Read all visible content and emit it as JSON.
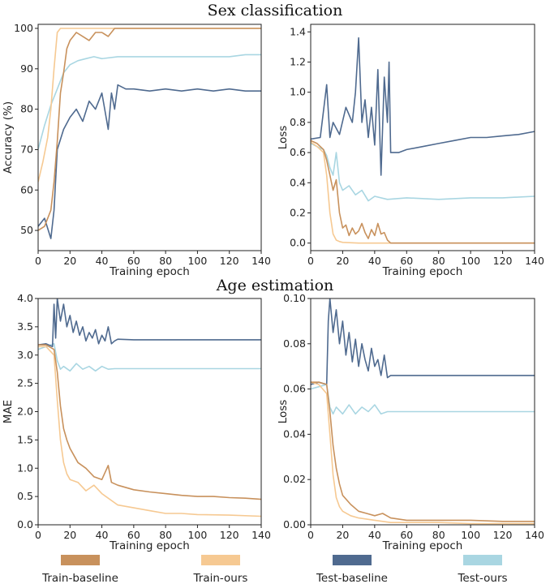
{
  "section_titles": {
    "top": "Sex classification",
    "bottom": "Age estimation"
  },
  "colors": {
    "train_baseline": "#c8915c",
    "train_ours": "#f6c992",
    "test_baseline": "#4f6a8f",
    "test_ours": "#a9d6e2"
  },
  "legend": [
    {
      "key": "train_baseline",
      "label": "Train-baseline"
    },
    {
      "key": "train_ours",
      "label": "Train-ours"
    },
    {
      "key": "test_baseline",
      "label": "Test-baseline"
    },
    {
      "key": "test_ours",
      "label": "Test-ours"
    }
  ],
  "chart_data": [
    {
      "id": "sex-acc",
      "type": "line",
      "xlabel": "Training epoch",
      "ylabel": "Accuracy (%)",
      "xlim": [
        0,
        140
      ],
      "ylim": [
        45,
        101
      ],
      "xticks": [
        0,
        20,
        40,
        60,
        80,
        100,
        120,
        140
      ],
      "yticks": [
        50,
        60,
        70,
        80,
        90,
        100
      ],
      "ytick_labels": [
        "50",
        "60",
        "70",
        "80",
        "90",
        "100"
      ],
      "series": [
        {
          "key": "test_ours",
          "name": "Test-ours",
          "x": [
            0,
            4,
            8,
            12,
            16,
            20,
            25,
            30,
            35,
            40,
            50,
            60,
            70,
            80,
            90,
            100,
            110,
            120,
            130,
            140
          ],
          "y": [
            70,
            76,
            81,
            85,
            89,
            91,
            92,
            92.5,
            93,
            92.5,
            93,
            93,
            93,
            93,
            93,
            93,
            93,
            93,
            93.5,
            93.5
          ]
        },
        {
          "key": "test_baseline",
          "name": "Test-baseline",
          "x": [
            0,
            4,
            8,
            10,
            12,
            16,
            20,
            24,
            28,
            32,
            36,
            40,
            44,
            46,
            48,
            50,
            55,
            60,
            70,
            80,
            90,
            100,
            110,
            120,
            130,
            140
          ],
          "y": [
            51,
            53,
            48,
            55,
            70,
            75,
            78,
            80,
            77,
            82,
            80,
            84,
            75,
            84,
            80,
            86,
            85,
            85,
            84.5,
            85,
            84.5,
            85,
            84.5,
            85,
            84.5,
            84.5
          ]
        },
        {
          "key": "train_ours",
          "name": "Train-ours",
          "x": [
            0,
            3,
            6,
            8,
            10,
            12,
            14,
            18,
            25,
            30,
            40,
            50,
            60,
            80,
            100,
            120,
            140
          ],
          "y": [
            62,
            67,
            73,
            80,
            90,
            99,
            100,
            100,
            100,
            100,
            100,
            100,
            100,
            100,
            100,
            100,
            100
          ]
        },
        {
          "key": "train_baseline",
          "name": "Train-baseline",
          "x": [
            0,
            4,
            8,
            10,
            12,
            14,
            16,
            18,
            20,
            24,
            28,
            32,
            36,
            40,
            44,
            48,
            50,
            60,
            80,
            100,
            120,
            140
          ],
          "y": [
            50,
            51,
            55,
            62,
            72,
            84,
            89,
            95,
            97,
            99,
            98,
            97,
            99,
            99,
            98,
            100,
            100,
            100,
            100,
            100,
            100,
            100
          ]
        }
      ]
    },
    {
      "id": "sex-loss",
      "type": "line",
      "xlabel": "Training epoch",
      "ylabel": "Loss",
      "xlim": [
        0,
        140
      ],
      "ylim": [
        -0.05,
        1.45
      ],
      "xticks": [
        0,
        20,
        40,
        60,
        80,
        100,
        120,
        140
      ],
      "yticks": [
        0.0,
        0.2,
        0.4,
        0.6,
        0.8,
        1.0,
        1.2,
        1.4
      ],
      "ytick_labels": [
        "0.0",
        "0.2",
        "0.4",
        "0.6",
        "0.8",
        "1.0",
        "1.2",
        "1.4"
      ],
      "series": [
        {
          "key": "test_ours",
          "name": "Test-ours",
          "x": [
            0,
            4,
            8,
            10,
            12,
            14,
            16,
            18,
            20,
            24,
            28,
            32,
            36,
            40,
            48,
            60,
            80,
            100,
            120,
            140
          ],
          "y": [
            0.66,
            0.64,
            0.62,
            0.58,
            0.5,
            0.45,
            0.6,
            0.4,
            0.35,
            0.38,
            0.32,
            0.35,
            0.28,
            0.31,
            0.29,
            0.3,
            0.29,
            0.3,
            0.3,
            0.31
          ]
        },
        {
          "key": "test_baseline",
          "name": "Test-baseline",
          "x": [
            0,
            6,
            10,
            12,
            14,
            18,
            22,
            26,
            28,
            30,
            32,
            34,
            36,
            38,
            40,
            42,
            44,
            46,
            48,
            49,
            50,
            55,
            60,
            70,
            80,
            90,
            100,
            110,
            120,
            130,
            140
          ],
          "y": [
            0.69,
            0.7,
            1.05,
            0.7,
            0.8,
            0.72,
            0.9,
            0.8,
            1.0,
            1.36,
            0.8,
            0.95,
            0.7,
            0.9,
            0.65,
            1.15,
            0.45,
            1.1,
            0.8,
            1.2,
            0.6,
            0.6,
            0.62,
            0.64,
            0.66,
            0.68,
            0.7,
            0.7,
            0.71,
            0.72,
            0.74
          ]
        },
        {
          "key": "train_ours",
          "name": "Train-ours",
          "x": [
            0,
            4,
            8,
            10,
            12,
            14,
            16,
            18,
            20,
            30,
            40,
            60,
            80,
            100,
            120,
            140
          ],
          "y": [
            0.67,
            0.64,
            0.6,
            0.45,
            0.2,
            0.06,
            0.02,
            0.01,
            0.005,
            0,
            0,
            0,
            0,
            0,
            0,
            0
          ]
        },
        {
          "key": "train_baseline",
          "name": "Train-baseline",
          "x": [
            0,
            4,
            8,
            10,
            12,
            14,
            16,
            18,
            20,
            22,
            24,
            26,
            28,
            30,
            32,
            34,
            36,
            38,
            40,
            42,
            44,
            46,
            48,
            50,
            60,
            80,
            100,
            120,
            140
          ],
          "y": [
            0.68,
            0.66,
            0.62,
            0.55,
            0.45,
            0.35,
            0.42,
            0.2,
            0.1,
            0.12,
            0.05,
            0.1,
            0.06,
            0.08,
            0.13,
            0.07,
            0.03,
            0.09,
            0.05,
            0.13,
            0.06,
            0.07,
            0.02,
            0,
            0,
            0,
            0,
            0,
            0
          ]
        }
      ]
    },
    {
      "id": "age-mae",
      "type": "line",
      "xlabel": "Training epoch",
      "ylabel": "MAE",
      "xlim": [
        0,
        140
      ],
      "ylim": [
        0,
        4.0
      ],
      "xticks": [
        0,
        20,
        40,
        60,
        80,
        100,
        120,
        140
      ],
      "yticks": [
        0.0,
        0.5,
        1.0,
        1.5,
        2.0,
        2.5,
        3.0,
        3.5,
        4.0
      ],
      "ytick_labels": [
        "0.0",
        "0.5",
        "1.0",
        "1.5",
        "2.0",
        "2.5",
        "3.0",
        "3.5",
        "4.0"
      ],
      "series": [
        {
          "key": "test_ours",
          "name": "Test-ours",
          "x": [
            0,
            5,
            10,
            12,
            14,
            16,
            20,
            24,
            28,
            32,
            36,
            40,
            44,
            48,
            60,
            80,
            100,
            120,
            140
          ],
          "y": [
            3.1,
            3.15,
            3.2,
            2.9,
            2.75,
            2.8,
            2.72,
            2.85,
            2.75,
            2.8,
            2.72,
            2.8,
            2.75,
            2.76,
            2.76,
            2.76,
            2.76,
            2.76,
            2.76
          ]
        },
        {
          "key": "test_baseline",
          "name": "Test-baseline",
          "x": [
            0,
            5,
            9,
            10,
            11,
            12,
            14,
            16,
            18,
            20,
            22,
            24,
            26,
            28,
            30,
            32,
            34,
            36,
            38,
            40,
            42,
            44,
            46,
            48,
            50,
            60,
            80,
            100,
            120,
            140
          ],
          "y": [
            3.18,
            3.2,
            3.15,
            3.9,
            3.3,
            4.0,
            3.6,
            3.9,
            3.5,
            3.7,
            3.4,
            3.6,
            3.35,
            3.5,
            3.25,
            3.4,
            3.3,
            3.45,
            3.2,
            3.35,
            3.25,
            3.5,
            3.2,
            3.25,
            3.28,
            3.27,
            3.27,
            3.27,
            3.27,
            3.27
          ]
        },
        {
          "key": "train_ours",
          "name": "Train-ours",
          "x": [
            0,
            5,
            10,
            12,
            14,
            16,
            18,
            20,
            25,
            30,
            35,
            40,
            50,
            60,
            70,
            80,
            90,
            100,
            120,
            140
          ],
          "y": [
            3.15,
            3.15,
            3.0,
            2.2,
            1.5,
            1.1,
            0.9,
            0.8,
            0.75,
            0.6,
            0.7,
            0.55,
            0.35,
            0.3,
            0.25,
            0.2,
            0.2,
            0.18,
            0.17,
            0.15
          ]
        },
        {
          "key": "train_baseline",
          "name": "Train-baseline",
          "x": [
            0,
            5,
            10,
            12,
            14,
            16,
            18,
            20,
            25,
            30,
            35,
            40,
            44,
            46,
            50,
            60,
            70,
            80,
            90,
            100,
            110,
            120,
            130,
            140
          ],
          "y": [
            3.18,
            3.18,
            3.1,
            2.7,
            2.1,
            1.7,
            1.5,
            1.35,
            1.1,
            1.0,
            0.85,
            0.8,
            1.05,
            0.75,
            0.7,
            0.62,
            0.58,
            0.55,
            0.52,
            0.5,
            0.5,
            0.48,
            0.47,
            0.45
          ]
        }
      ]
    },
    {
      "id": "age-loss",
      "type": "line",
      "xlabel": "Training epoch",
      "ylabel": "Loss",
      "xlim": [
        0,
        140
      ],
      "ylim": [
        0,
        0.1
      ],
      "xticks": [
        0,
        20,
        40,
        60,
        80,
        100,
        120,
        140
      ],
      "yticks": [
        0.0,
        0.02,
        0.04,
        0.06,
        0.08,
        0.1
      ],
      "ytick_labels": [
        "0.00",
        "0.02",
        "0.04",
        "0.06",
        "0.08",
        "0.10"
      ],
      "series": [
        {
          "key": "test_ours",
          "name": "Test-ours",
          "x": [
            0,
            5,
            10,
            12,
            14,
            16,
            20,
            24,
            28,
            32,
            36,
            40,
            44,
            48,
            60,
            80,
            100,
            120,
            140
          ],
          "y": [
            0.06,
            0.061,
            0.062,
            0.052,
            0.049,
            0.052,
            0.049,
            0.053,
            0.049,
            0.052,
            0.05,
            0.053,
            0.049,
            0.05,
            0.05,
            0.05,
            0.05,
            0.05,
            0.05
          ]
        },
        {
          "key": "test_baseline",
          "name": "Test-baseline",
          "x": [
            0,
            5,
            10,
            11,
            12,
            14,
            16,
            18,
            20,
            22,
            24,
            26,
            28,
            30,
            32,
            34,
            36,
            38,
            40,
            42,
            44,
            46,
            48,
            50,
            60,
            80,
            100,
            120,
            140
          ],
          "y": [
            0.062,
            0.063,
            0.062,
            0.09,
            0.1,
            0.085,
            0.095,
            0.08,
            0.09,
            0.075,
            0.085,
            0.072,
            0.082,
            0.07,
            0.08,
            0.073,
            0.068,
            0.078,
            0.07,
            0.073,
            0.066,
            0.075,
            0.065,
            0.066,
            0.066,
            0.066,
            0.066,
            0.066,
            0.066
          ]
        },
        {
          "key": "train_ours",
          "name": "Train-ours",
          "x": [
            0,
            5,
            10,
            12,
            14,
            16,
            18,
            20,
            25,
            30,
            40,
            50,
            60,
            80,
            100,
            120,
            140
          ],
          "y": [
            0.063,
            0.062,
            0.058,
            0.04,
            0.022,
            0.012,
            0.008,
            0.006,
            0.004,
            0.003,
            0.002,
            0.001,
            0.001,
            0.001,
            0.0005,
            0.0005,
            0.0005
          ]
        },
        {
          "key": "train_baseline",
          "name": "Train-baseline",
          "x": [
            0,
            5,
            10,
            12,
            14,
            16,
            18,
            20,
            25,
            30,
            35,
            40,
            45,
            50,
            60,
            80,
            100,
            120,
            140
          ],
          "y": [
            0.063,
            0.063,
            0.062,
            0.05,
            0.035,
            0.025,
            0.018,
            0.013,
            0.009,
            0.006,
            0.005,
            0.004,
            0.005,
            0.003,
            0.002,
            0.002,
            0.002,
            0.0015,
            0.0015
          ]
        }
      ]
    }
  ]
}
